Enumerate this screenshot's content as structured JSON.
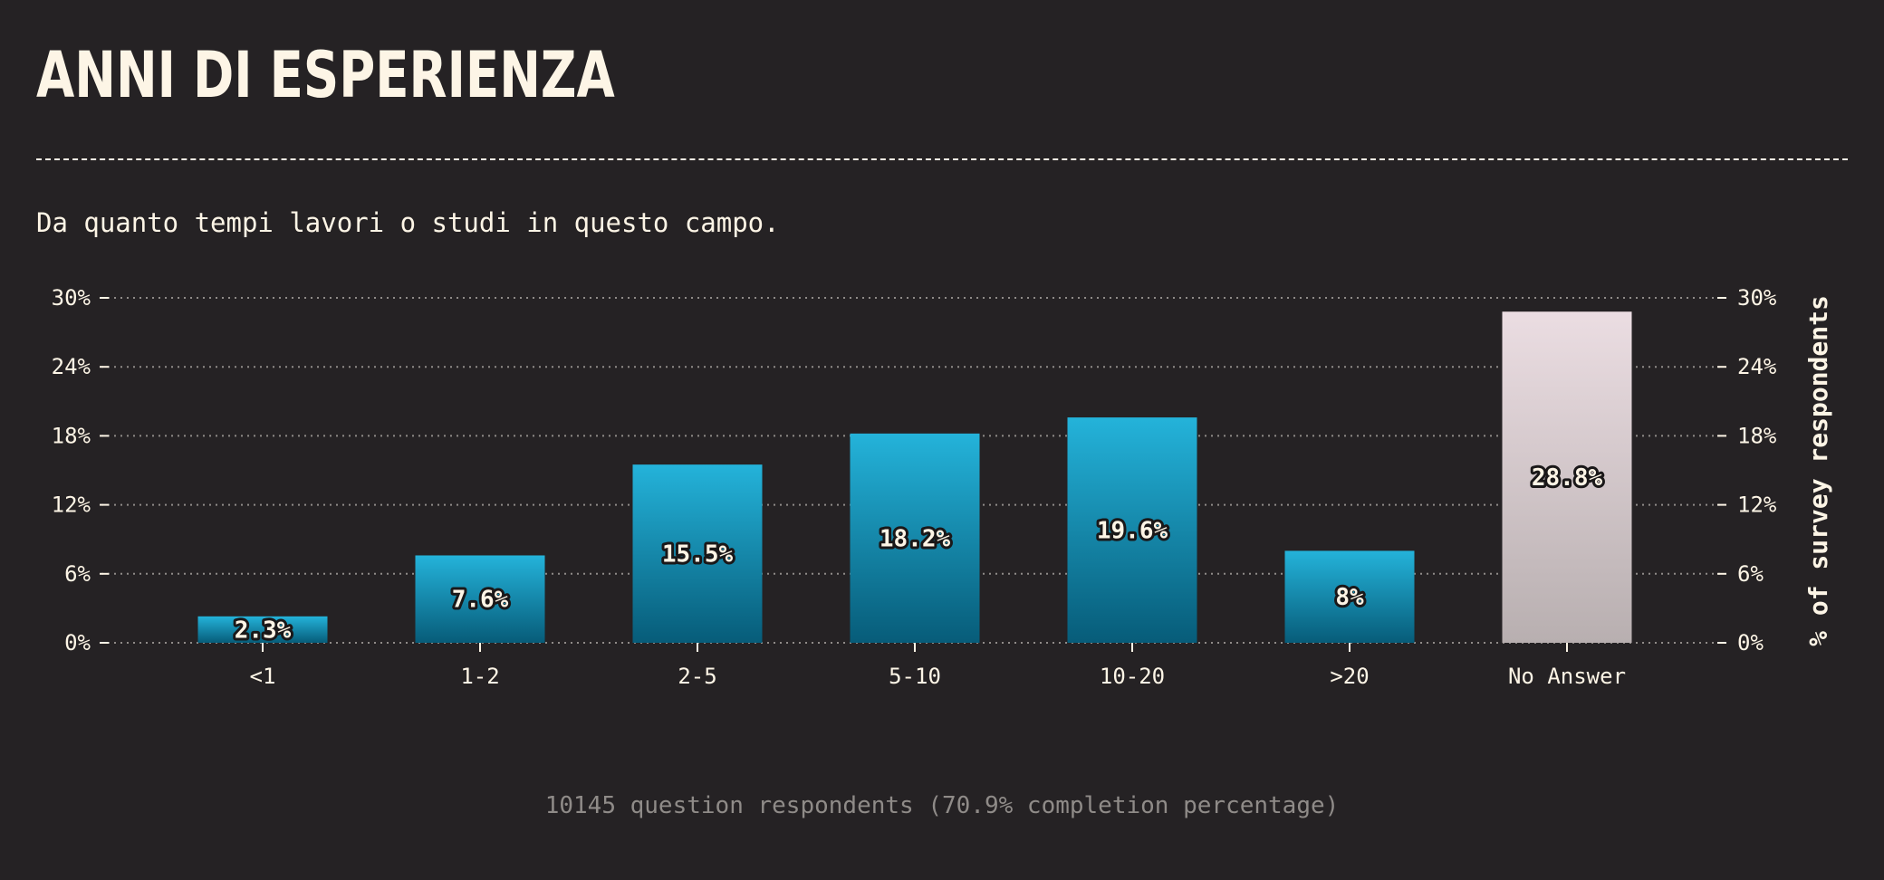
{
  "title": "ANNI DI ESPERIENZA",
  "subtitle": "Da quanto tempi lavori o studi in questo campo.",
  "footer": "10145 question respondents (70.9% completion percentage)",
  "colors": {
    "background": "#252224",
    "text": "#fdf5e6",
    "bar_top": "#24b3da",
    "bar_bottom": "#075c79",
    "highlight_top": "#ebdde2",
    "highlight_bottom": "#b8afb0",
    "grid": "#8f8b88"
  },
  "chart_data": {
    "type": "bar",
    "categories": [
      "<1",
      "1-2",
      "2-5",
      "5-10",
      "10-20",
      ">20",
      "No Answer"
    ],
    "values": [
      2.3,
      7.6,
      15.5,
      18.2,
      19.6,
      8,
      28.8
    ],
    "value_labels": [
      "2.3%",
      "7.6%",
      "15.5%",
      "18.2%",
      "19.6%",
      "8%",
      "28.8%"
    ],
    "highlighted": [
      "No Answer"
    ],
    "ylabel_right": "% of survey respondents",
    "ylim": [
      0,
      30
    ],
    "yticks": [
      0,
      6,
      12,
      18,
      24,
      30
    ],
    "ytick_labels": [
      "0%",
      "6%",
      "12%",
      "18%",
      "24%",
      "30%"
    ],
    "grid": true,
    "y_axis_sides": [
      "left",
      "right"
    ]
  }
}
